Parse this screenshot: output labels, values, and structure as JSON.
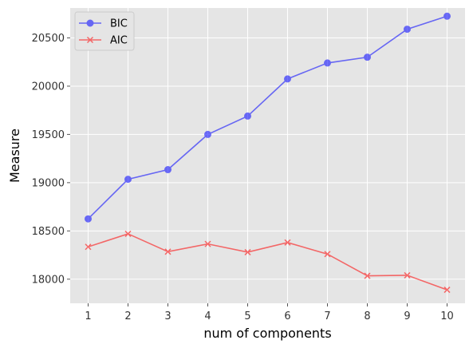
{
  "chart_data": {
    "type": "line",
    "title": "",
    "xlabel": "num of components",
    "ylabel": "Measure",
    "x": [
      1,
      2,
      3,
      4,
      5,
      6,
      7,
      8,
      9,
      10
    ],
    "xlim": [
      0.55,
      10.45
    ],
    "ylim": [
      17750,
      20810
    ],
    "yticks": [
      18000,
      18500,
      19000,
      19500,
      20000,
      20500
    ],
    "grid": true,
    "legend": "top-left",
    "series": [
      {
        "name": "BIC",
        "marker": "circle",
        "color": "#0000ff",
        "values": [
          18625,
          19035,
          19135,
          19500,
          19690,
          20075,
          20240,
          20300,
          20590,
          20725
        ]
      },
      {
        "name": "AIC",
        "marker": "x",
        "color": "#ff0000",
        "values": [
          18335,
          18470,
          18285,
          18365,
          18280,
          18380,
          18260,
          18035,
          18040,
          17890
        ]
      }
    ]
  }
}
